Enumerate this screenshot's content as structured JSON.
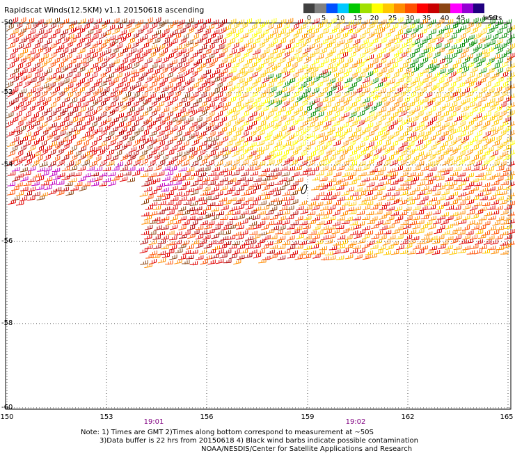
{
  "title": "Rapidscat Winds(12.5KM) v1.1 20150618 ascending",
  "legend": {
    "colors": [
      "#404040",
      "#808080",
      "#0050ff",
      "#00c8ff",
      "#00c800",
      "#a0e000",
      "#ffff00",
      "#ffc800",
      "#ff8c00",
      "#ff5000",
      "#ff0000",
      "#c80000",
      "#8b4513",
      "#ff00ff",
      "#9400d3",
      "#200080"
    ],
    "labels": [
      "0",
      "5",
      "10",
      "15",
      "20",
      "25",
      "30",
      "35",
      "40",
      "45",
      ">50"
    ],
    "units": "knots"
  },
  "map": {
    "lat_labels": [
      "-50",
      "-52",
      "-54",
      "-56",
      "-58",
      "-60"
    ],
    "lon_labels": [
      "150",
      "153",
      "156",
      "159",
      "162",
      "165"
    ],
    "lat_range": [
      -60,
      -50
    ],
    "lon_range": [
      150,
      165
    ],
    "grid": true,
    "times": [
      "19:01",
      "19:02"
    ]
  },
  "notes": {
    "line1": "Note: 1) Times are GMT 2)Times along bottom correspond to measurement at ~50S",
    "line2": "3)Data buffer is 22 hrs from 20150618 4) Black wind barbs indicate possible contamination",
    "line3": "NOAA/NESDIS/Center for Satellite Applications and Research"
  }
}
